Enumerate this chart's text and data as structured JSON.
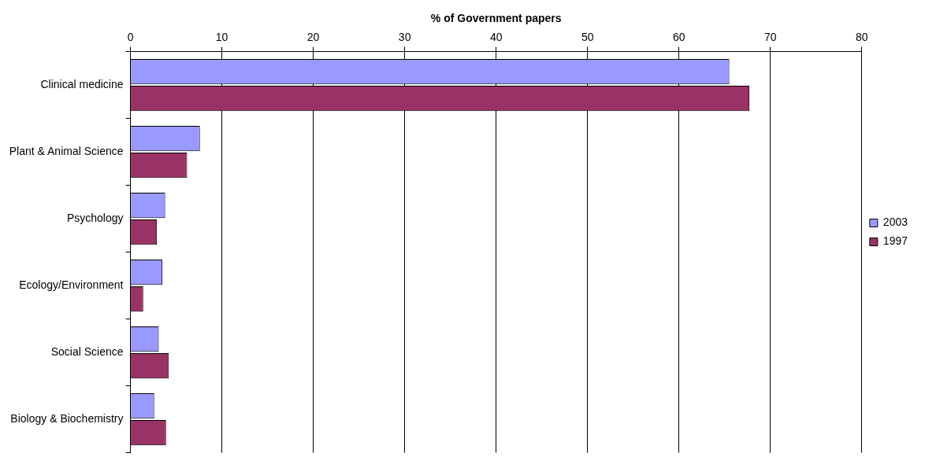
{
  "chart_data": {
    "type": "bar",
    "orientation": "horizontal",
    "xlabel": "% of Government papers",
    "categories": [
      "Clinical medicine",
      "Plant & Animal Science",
      "Psychology",
      "Ecology/Environment",
      "Social Science",
      "Biology & Biochemistry"
    ],
    "series": [
      {
        "name": "2003",
        "color": "#9999ff",
        "values": [
          65.5,
          7.6,
          3.8,
          3.5,
          3.1,
          2.6
        ]
      },
      {
        "name": "1997",
        "color": "#993366",
        "values": [
          67.7,
          6.2,
          2.9,
          1.4,
          4.2,
          3.9
        ]
      }
    ],
    "xlim": [
      0,
      80
    ],
    "xticks": [
      0,
      10,
      20,
      30,
      40,
      50,
      60,
      70,
      80
    ],
    "grid": "x",
    "legend": "right"
  }
}
